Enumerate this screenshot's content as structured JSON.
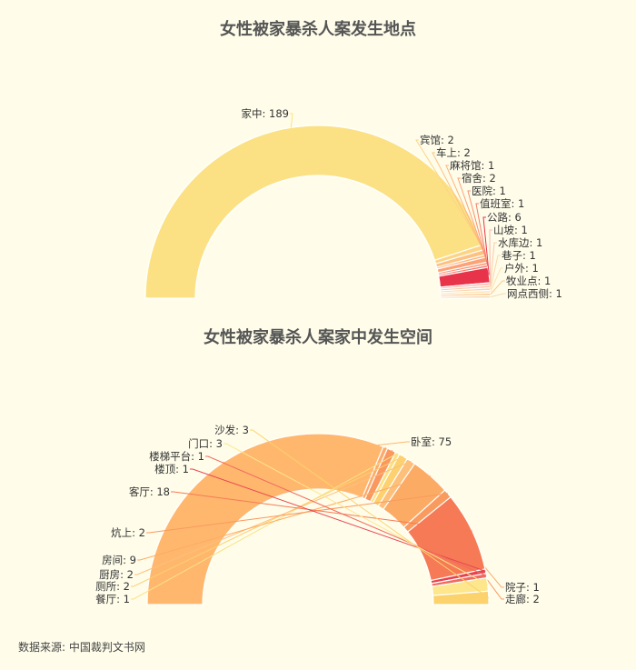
{
  "chart_data": [
    {
      "type": "pie",
      "title": "女性被家暴杀人案发生地点",
      "categories": [
        "家中",
        "宾馆",
        "车上",
        "麻将馆",
        "宿舍",
        "医院",
        "值班室",
        "公路",
        "山坡",
        "水库边",
        "巷子",
        "户外",
        "牧业点",
        "网点西侧"
      ],
      "values": [
        189,
        2,
        2,
        1,
        2,
        1,
        1,
        6,
        1,
        1,
        1,
        1,
        1,
        1
      ],
      "colors": [
        "#fbe183",
        "#fcd485",
        "#fdc281",
        "#fdb57b",
        "#fca276",
        "#f99070",
        "#f47d6a",
        "#e8344a",
        "#f8b6ab",
        "#fcc7a8",
        "#fdd6aa",
        "#fee3b1",
        "#fbc98a",
        "#f7d9b0"
      ]
    },
    {
      "type": "pie",
      "title": "女性被家暴杀人案家中发生空间",
      "categories": [
        "卧室",
        "院子",
        "走廊",
        "餐厅",
        "厕所",
        "厨房",
        "房间",
        "炕上",
        "客厅",
        "楼顶",
        "楼梯平台",
        "门口",
        "沙发"
      ],
      "values": [
        75,
        1,
        2,
        1,
        2,
        2,
        9,
        2,
        18,
        1,
        1,
        3,
        3
      ],
      "colors": [
        "#ffb76e",
        "#fdab6c",
        "#f9985f",
        "#fbe183",
        "#fdd070",
        "#fdc07a",
        "#fcab64",
        "#f99a5e",
        "#f57a55",
        "#e8424e",
        "#f06a5f",
        "#fde68c",
        "#fbd26c"
      ]
    }
  ],
  "source": "数据来源: 中国裁判文书网"
}
